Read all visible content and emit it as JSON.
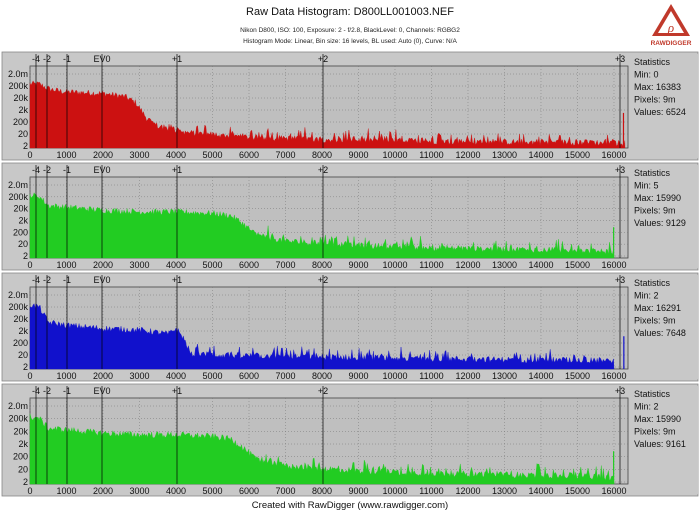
{
  "header": {
    "title": "Raw Data Histogram: D800LL001003.NEF",
    "line1": "Nikon D800, ISO: 100, Exposure: 2 - f/2.8, BlackLevel: 0, Channels: RGBG2",
    "line2": "Histogram Mode: Linear, Bin size: 16 levels, BL used: Auto (0), Curve: N/A"
  },
  "logo": {
    "text": "RAWDIGGER",
    "color": "#c0392b"
  },
  "footer": "Created with RawDigger (www.rawdigger.com)",
  "chart_data": [
    {
      "type": "area",
      "channel": "R",
      "color": "#cc1111",
      "y_tick_labels": [
        "2.0m",
        "200k",
        "20k",
        "2k",
        "200",
        "20",
        "2"
      ],
      "x_tick_labels": [
        "0",
        "1000",
        "2000",
        "3000",
        "4000",
        "5000",
        "6000",
        "7000",
        "8000",
        "9000",
        "10000",
        "11000",
        "12000",
        "13000",
        "14000",
        "15000",
        "16000"
      ],
      "ev_labels": [
        "-4",
        "-2",
        "-1",
        "EV0",
        "+1",
        "+2",
        "+3"
      ],
      "xlim": [
        0,
        16384
      ],
      "statistics": {
        "title": "Statistics",
        "min": "Min: 0",
        "max": "Max: 16383",
        "pixels": "Pixels: 9m",
        "values": "Values: 6524"
      },
      "profile": [
        [
          0,
          0.82
        ],
        [
          250,
          0.82
        ],
        [
          500,
          0.76
        ],
        [
          800,
          0.73
        ],
        [
          1000,
          0.72
        ],
        [
          2000,
          0.7
        ],
        [
          2600,
          0.66
        ],
        [
          2900,
          0.58
        ],
        [
          3200,
          0.38
        ],
        [
          3500,
          0.28
        ],
        [
          4200,
          0.2
        ],
        [
          6000,
          0.14
        ],
        [
          8000,
          0.11
        ],
        [
          12000,
          0.08
        ],
        [
          15500,
          0.07
        ],
        [
          16300,
          0.06
        ]
      ],
      "spike": [
        16260,
        0.45
      ]
    },
    {
      "type": "area",
      "channel": "G",
      "color": "#22cc22",
      "y_tick_labels": [
        "2.0m",
        "200k",
        "20k",
        "2k",
        "200",
        "20",
        "2"
      ],
      "x_tick_labels": [
        "0",
        "1000",
        "2000",
        "3000",
        "4000",
        "5000",
        "6000",
        "7000",
        "8000",
        "9000",
        "10000",
        "11000",
        "12000",
        "13000",
        "14000",
        "15000",
        "16000"
      ],
      "ev_labels": [
        "-4",
        "-2",
        "-1",
        "EV0",
        "+1",
        "+2",
        "+3"
      ],
      "xlim": [
        0,
        16384
      ],
      "statistics": {
        "title": "Statistics",
        "min": "Min: 5",
        "max": "Max: 15990",
        "pixels": "Pixels: 9m",
        "values": "Values: 9129"
      },
      "profile": [
        [
          0,
          0.82
        ],
        [
          250,
          0.8
        ],
        [
          500,
          0.68
        ],
        [
          1000,
          0.66
        ],
        [
          2000,
          0.62
        ],
        [
          3000,
          0.6
        ],
        [
          4000,
          0.6
        ],
        [
          5000,
          0.58
        ],
        [
          5500,
          0.55
        ],
        [
          5800,
          0.46
        ],
        [
          6200,
          0.3
        ],
        [
          7000,
          0.22
        ],
        [
          9000,
          0.16
        ],
        [
          12000,
          0.12
        ],
        [
          15000,
          0.1
        ],
        [
          16000,
          0.08
        ]
      ],
      "spike": [
        15990,
        0.4
      ]
    },
    {
      "type": "area",
      "channel": "B",
      "color": "#1111cc",
      "y_tick_labels": [
        "2.0m",
        "200k",
        "20k",
        "2k",
        "200",
        "20",
        "2"
      ],
      "x_tick_labels": [
        "0",
        "1000",
        "2000",
        "3000",
        "4000",
        "5000",
        "6000",
        "7000",
        "8000",
        "9000",
        "10000",
        "11000",
        "12000",
        "13000",
        "14000",
        "15000",
        "16000"
      ],
      "ev_labels": [
        "-4",
        "-2",
        "-1",
        "EV0",
        "+1",
        "+2",
        "+3"
      ],
      "xlim": [
        0,
        16384
      ],
      "statistics": {
        "title": "Statistics",
        "min": "Min: 2",
        "max": "Max: 16291",
        "pixels": "Pixels: 9m",
        "values": "Values: 7648"
      },
      "profile": [
        [
          0,
          0.82
        ],
        [
          250,
          0.8
        ],
        [
          500,
          0.6
        ],
        [
          1000,
          0.56
        ],
        [
          2000,
          0.52
        ],
        [
          3000,
          0.5
        ],
        [
          3800,
          0.45
        ],
        [
          4000,
          0.52
        ],
        [
          4200,
          0.4
        ],
        [
          4400,
          0.2
        ],
        [
          5000,
          0.18
        ],
        [
          7000,
          0.16
        ],
        [
          10000,
          0.14
        ],
        [
          13000,
          0.12
        ],
        [
          16000,
          0.11
        ]
      ],
      "spike": [
        16270,
        0.42
      ]
    },
    {
      "type": "area",
      "channel": "G2",
      "color": "#22cc22",
      "y_tick_labels": [
        "2.0m",
        "200k",
        "20k",
        "2k",
        "200",
        "20",
        "2"
      ],
      "x_tick_labels": [
        "0",
        "1000",
        "2000",
        "3000",
        "4000",
        "5000",
        "6000",
        "7000",
        "8000",
        "9000",
        "10000",
        "11000",
        "12000",
        "13000",
        "14000",
        "15000",
        "16000"
      ],
      "ev_labels": [
        "-4",
        "-2",
        "-1",
        "EV0",
        "+1",
        "+2",
        "+3"
      ],
      "xlim": [
        0,
        16384
      ],
      "statistics": {
        "title": "Statistics",
        "min": "Min: 2",
        "max": "Max: 15990",
        "pixels": "Pixels: 9m",
        "values": "Values: 9161"
      },
      "profile": [
        [
          0,
          0.82
        ],
        [
          250,
          0.8
        ],
        [
          500,
          0.68
        ],
        [
          1000,
          0.66
        ],
        [
          2000,
          0.62
        ],
        [
          3000,
          0.6
        ],
        [
          4000,
          0.6
        ],
        [
          5000,
          0.58
        ],
        [
          5500,
          0.55
        ],
        [
          5800,
          0.46
        ],
        [
          6200,
          0.3
        ],
        [
          7000,
          0.22
        ],
        [
          9000,
          0.16
        ],
        [
          12000,
          0.12
        ],
        [
          15000,
          0.1
        ],
        [
          16000,
          0.08
        ]
      ],
      "spike": [
        15990,
        0.4
      ]
    }
  ]
}
